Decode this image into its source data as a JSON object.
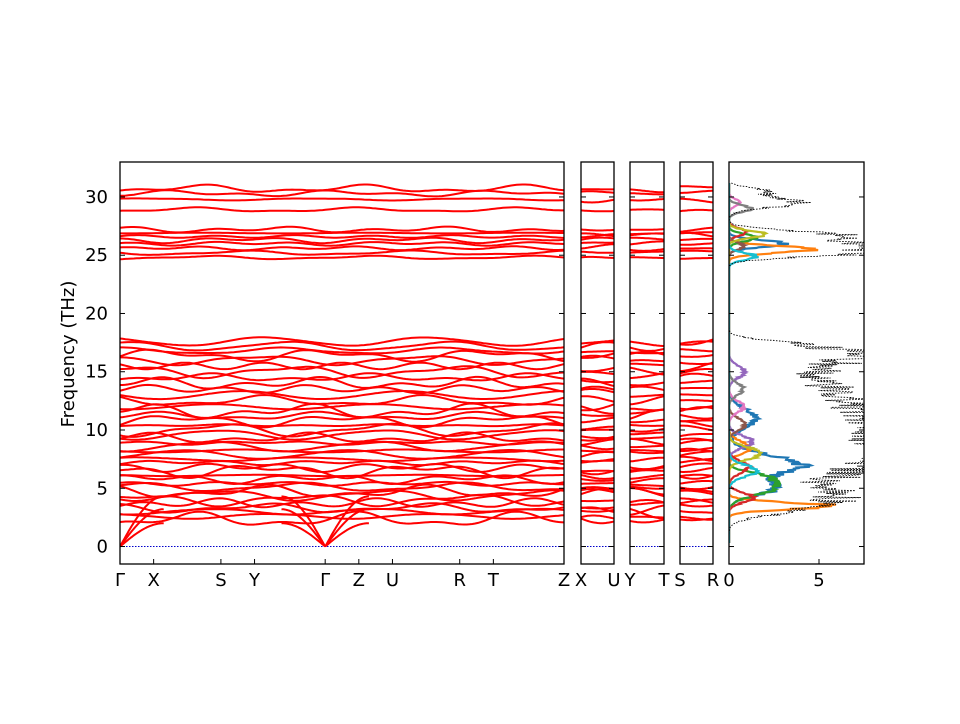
{
  "chart_data": {
    "type": "line",
    "title": "",
    "ylabel": "Frequency (THz)",
    "ylim": [
      -1.5,
      33
    ],
    "yticks": [
      0,
      5,
      10,
      15,
      20,
      25,
      30
    ],
    "ytick_labels": [
      "0",
      "5",
      "10",
      "15",
      "20",
      "25",
      "30"
    ],
    "band_color": "#ff0000",
    "zero_line_color": "#0000cc",
    "dos_color": "#000000",
    "grid": false,
    "panels": [
      {
        "id": "main",
        "kind": "bands",
        "xlim": [
          0,
          13.2
        ],
        "ticks": [
          {
            "x": 0,
            "label": "Γ"
          },
          {
            "x": 1.0,
            "label": "X"
          },
          {
            "x": 3.0,
            "label": "S"
          },
          {
            "x": 4.0,
            "label": "Y"
          },
          {
            "x": 6.1,
            "label": "Γ"
          },
          {
            "x": 7.1,
            "label": "Z"
          },
          {
            "x": 8.1,
            "label": "U"
          },
          {
            "x": 10.1,
            "label": "R"
          },
          {
            "x": 11.1,
            "label": "T"
          },
          {
            "x": 13.2,
            "label": "Z"
          }
        ]
      },
      {
        "id": "xu",
        "kind": "bands",
        "xlim": [
          0,
          1
        ],
        "ticks": [
          {
            "x": 0,
            "label": "X"
          },
          {
            "x": 1,
            "label": "U"
          }
        ]
      },
      {
        "id": "yt",
        "kind": "bands",
        "xlim": [
          0,
          1
        ],
        "ticks": [
          {
            "x": 0,
            "label": "Y"
          },
          {
            "x": 1,
            "label": "T"
          }
        ]
      },
      {
        "id": "sr",
        "kind": "bands",
        "xlim": [
          0,
          1
        ],
        "ticks": [
          {
            "x": 0,
            "label": "S"
          },
          {
            "x": 1,
            "label": "R"
          }
        ]
      },
      {
        "id": "dos",
        "kind": "dos",
        "xlim": [
          0,
          7.5
        ],
        "ticks": [
          {
            "x": 0,
            "label": "0"
          },
          {
            "x": 5,
            "label": "5"
          }
        ]
      }
    ],
    "band_levels_thz": [
      2.3,
      2.6,
      3.0,
      3.3,
      3.7,
      4.0,
      4.4,
      4.7,
      5.1,
      5.4,
      5.8,
      6.1,
      6.5,
      6.8,
      7.2,
      7.5,
      7.9,
      8.2,
      8.6,
      8.9,
      9.3,
      9.6,
      10.0,
      10.4,
      10.8,
      11.2,
      11.6,
      12.0,
      12.5,
      13.0,
      13.5,
      14.0,
      14.5,
      15.0,
      15.5,
      16.0,
      16.4,
      16.8,
      17.2,
      17.6,
      24.8,
      25.2,
      25.6,
      26.0,
      26.3,
      26.6,
      26.9,
      27.2,
      28.9,
      29.8,
      30.3,
      30.7
    ],
    "acoustic_branches": {
      "gamma_points": [
        0,
        6.1
      ],
      "top_thz": [
        2.0,
        3.2,
        4.3
      ]
    },
    "dos_total_peaks": [
      {
        "f": 3.3,
        "w": 0.6,
        "h": 3.5
      },
      {
        "f": 4.5,
        "w": 0.7,
        "h": 5.0
      },
      {
        "f": 6.5,
        "w": 0.9,
        "h": 6.3
      },
      {
        "f": 8.0,
        "w": 0.7,
        "h": 6.8
      },
      {
        "f": 9.5,
        "w": 0.8,
        "h": 7.2
      },
      {
        "f": 11.0,
        "w": 0.8,
        "h": 6.0
      },
      {
        "f": 12.5,
        "w": 0.8,
        "h": 5.5
      },
      {
        "f": 14.0,
        "w": 0.7,
        "h": 4.0
      },
      {
        "f": 15.5,
        "w": 0.7,
        "h": 4.5
      },
      {
        "f": 16.5,
        "w": 0.5,
        "h": 5.0
      },
      {
        "f": 17.3,
        "w": 0.4,
        "h": 3.0
      },
      {
        "f": 25.2,
        "w": 0.35,
        "h": 6.5
      },
      {
        "f": 26.0,
        "w": 0.35,
        "h": 7.0
      },
      {
        "f": 26.8,
        "w": 0.35,
        "h": 5.5
      },
      {
        "f": 29.5,
        "w": 0.4,
        "h": 4.0
      },
      {
        "f": 30.5,
        "w": 0.3,
        "h": 2.0
      }
    ],
    "dos_partial": [
      {
        "color": "#1f77b4",
        "peaks": [
          {
            "f": 7.0,
            "w": 0.8,
            "h": 4.0
          },
          {
            "f": 5.0,
            "w": 0.6,
            "h": 2.5
          },
          {
            "f": 26.0,
            "w": 0.3,
            "h": 3.0
          },
          {
            "f": 11.0,
            "w": 0.8,
            "h": 1.5
          }
        ]
      },
      {
        "color": "#ff7f0e",
        "peaks": [
          {
            "f": 3.5,
            "w": 0.3,
            "h": 5.5
          },
          {
            "f": 25.5,
            "w": 0.3,
            "h": 4.5
          },
          {
            "f": 8.5,
            "w": 0.5,
            "h": 1.2
          }
        ]
      },
      {
        "color": "#2ca02c",
        "peaks": [
          {
            "f": 5.0,
            "w": 0.6,
            "h": 2.5
          },
          {
            "f": 6.0,
            "w": 0.4,
            "h": 1.6
          },
          {
            "f": 26.5,
            "w": 0.3,
            "h": 1.5
          }
        ]
      },
      {
        "color": "#d62728",
        "peaks": [
          {
            "f": 4.2,
            "w": 0.4,
            "h": 1.4
          },
          {
            "f": 6.8,
            "w": 0.5,
            "h": 1.1
          },
          {
            "f": 27.0,
            "w": 0.3,
            "h": 1.0
          }
        ]
      },
      {
        "color": "#9467bd",
        "peaks": [
          {
            "f": 9.0,
            "w": 0.5,
            "h": 1.3
          },
          {
            "f": 15.0,
            "w": 0.5,
            "h": 0.9
          }
        ]
      },
      {
        "color": "#8c564b",
        "peaks": [
          {
            "f": 10.5,
            "w": 0.5,
            "h": 0.9
          },
          {
            "f": 25.8,
            "w": 0.3,
            "h": 0.8
          }
        ]
      },
      {
        "color": "#e377c2",
        "peaks": [
          {
            "f": 12.0,
            "w": 0.5,
            "h": 0.8
          },
          {
            "f": 29.5,
            "w": 0.3,
            "h": 0.6
          }
        ]
      },
      {
        "color": "#7f7f7f",
        "peaks": [
          {
            "f": 13.5,
            "w": 0.5,
            "h": 0.8
          },
          {
            "f": 29.0,
            "w": 0.3,
            "h": 1.2
          }
        ]
      },
      {
        "color": "#bcbd22",
        "peaks": [
          {
            "f": 8.0,
            "w": 0.5,
            "h": 1.8
          },
          {
            "f": 26.8,
            "w": 0.3,
            "h": 2.0
          }
        ]
      },
      {
        "color": "#17becf",
        "peaks": [
          {
            "f": 6.5,
            "w": 0.5,
            "h": 1.5
          },
          {
            "f": 24.9,
            "w": 0.3,
            "h": 1.5
          }
        ]
      }
    ]
  }
}
